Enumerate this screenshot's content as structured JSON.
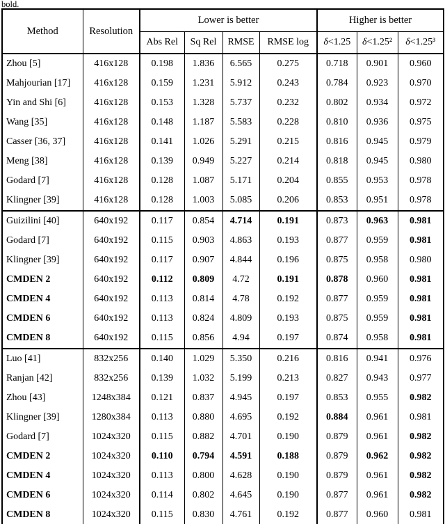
{
  "page": {
    "caption_tail": "bold."
  },
  "table": {
    "headers": {
      "method": "Method",
      "resolution": "Resolution",
      "lower_group": "Lower is better",
      "higher_group": "Higher is better",
      "metrics": [
        "Abs Rel",
        "Sq Rel",
        "RMSE",
        "RMSE log",
        "δ<1.25",
        "δ<1.25²",
        "δ<1.25³"
      ]
    },
    "sections": [
      {
        "rows": [
          {
            "method": "Zhou [5]",
            "method_bold": false,
            "resolution": "416x128",
            "values": [
              "0.198",
              "1.836",
              "6.565",
              "0.275",
              "0.718",
              "0.901",
              "0.960"
            ],
            "bold": [
              0,
              0,
              0,
              0,
              0,
              0,
              0
            ]
          },
          {
            "method": "Mahjourian [17]",
            "method_bold": false,
            "resolution": "416x128",
            "values": [
              "0.159",
              "1.231",
              "5.912",
              "0.243",
              "0.784",
              "0.923",
              "0.970"
            ],
            "bold": [
              0,
              0,
              0,
              0,
              0,
              0,
              0
            ]
          },
          {
            "method": "Yin and Shi [6]",
            "method_bold": false,
            "resolution": "416x128",
            "values": [
              "0.153",
              "1.328",
              "5.737",
              "0.232",
              "0.802",
              "0.934",
              "0.972"
            ],
            "bold": [
              0,
              0,
              0,
              0,
              0,
              0,
              0
            ]
          },
          {
            "method": "Wang [35]",
            "method_bold": false,
            "resolution": "416x128",
            "values": [
              "0.148",
              "1.187",
              "5.583",
              "0.228",
              "0.810",
              "0.936",
              "0.975"
            ],
            "bold": [
              0,
              0,
              0,
              0,
              0,
              0,
              0
            ]
          },
          {
            "method": "Casser [36, 37]",
            "method_bold": false,
            "resolution": "416x128",
            "values": [
              "0.141",
              "1.026",
              "5.291",
              "0.215",
              "0.816",
              "0.945",
              "0.979"
            ],
            "bold": [
              0,
              0,
              0,
              0,
              0,
              0,
              0
            ]
          },
          {
            "method": "Meng [38]",
            "method_bold": false,
            "resolution": "416x128",
            "values": [
              "0.139",
              "0.949",
              "5.227",
              "0.214",
              "0.818",
              "0.945",
              "0.980"
            ],
            "bold": [
              0,
              0,
              0,
              0,
              0,
              0,
              0
            ]
          },
          {
            "method": "Godard [7]",
            "method_bold": false,
            "resolution": "416x128",
            "values": [
              "0.128",
              "1.087",
              "5.171",
              "0.204",
              "0.855",
              "0.953",
              "0.978"
            ],
            "bold": [
              0,
              0,
              0,
              0,
              0,
              0,
              0
            ]
          },
          {
            "method": "Klingner [39]",
            "method_bold": false,
            "resolution": "416x128",
            "values": [
              "0.128",
              "1.003",
              "5.085",
              "0.206",
              "0.853",
              "0.951",
              "0.978"
            ],
            "bold": [
              0,
              0,
              0,
              0,
              0,
              0,
              0
            ]
          }
        ]
      },
      {
        "rows": [
          {
            "method": "Guizilini [40]",
            "method_bold": false,
            "resolution": "640x192",
            "values": [
              "0.117",
              "0.854",
              "4.714",
              "0.191",
              "0.873",
              "0.963",
              "0.981"
            ],
            "bold": [
              0,
              0,
              1,
              1,
              0,
              1,
              1
            ]
          },
          {
            "method": "Godard [7]",
            "method_bold": false,
            "resolution": "640x192",
            "values": [
              "0.115",
              "0.903",
              "4.863",
              "0.193",
              "0.877",
              "0.959",
              "0.981"
            ],
            "bold": [
              0,
              0,
              0,
              0,
              0,
              0,
              1
            ]
          },
          {
            "method": "Klingner [39]",
            "method_bold": false,
            "resolution": "640x192",
            "values": [
              "0.117",
              "0.907",
              "4.844",
              "0.196",
              "0.875",
              "0.958",
              "0.980"
            ],
            "bold": [
              0,
              0,
              0,
              0,
              0,
              0,
              0
            ]
          },
          {
            "method": "CMDEN 2",
            "method_bold": true,
            "resolution": "640x192",
            "values": [
              "0.112",
              "0.809",
              "4.72",
              "0.191",
              "0.878",
              "0.960",
              "0.981"
            ],
            "bold": [
              1,
              1,
              0,
              1,
              1,
              0,
              1
            ]
          },
          {
            "method": "CMDEN 4",
            "method_bold": true,
            "resolution": "640x192",
            "values": [
              "0.113",
              "0.814",
              "4.78",
              "0.192",
              "0.877",
              "0.959",
              "0.981"
            ],
            "bold": [
              0,
              0,
              0,
              0,
              0,
              0,
              1
            ]
          },
          {
            "method": "CMDEN 6",
            "method_bold": true,
            "resolution": "640x192",
            "values": [
              "0.113",
              "0.824",
              "4.809",
              "0.193",
              "0.875",
              "0.959",
              "0.981"
            ],
            "bold": [
              0,
              0,
              0,
              0,
              0,
              0,
              1
            ]
          },
          {
            "method": "CMDEN 8",
            "method_bold": true,
            "resolution": "640x192",
            "values": [
              "0.115",
              "0.856",
              "4.94",
              "0.197",
              "0.874",
              "0.958",
              "0.981"
            ],
            "bold": [
              0,
              0,
              0,
              0,
              0,
              0,
              1
            ]
          }
        ]
      },
      {
        "rows": [
          {
            "method": "Luo [41]",
            "method_bold": false,
            "resolution": "832x256",
            "values": [
              "0.140",
              "1.029",
              "5.350",
              "0.216",
              "0.816",
              "0.941",
              "0.976"
            ],
            "bold": [
              0,
              0,
              0,
              0,
              0,
              0,
              0
            ]
          },
          {
            "method": "Ranjan [42]",
            "method_bold": false,
            "resolution": "832x256",
            "values": [
              "0.139",
              "1.032",
              "5.199",
              "0.213",
              "0.827",
              "0.943",
              "0.977"
            ],
            "bold": [
              0,
              0,
              0,
              0,
              0,
              0,
              0
            ]
          },
          {
            "method": "Zhou [43]",
            "method_bold": false,
            "resolution": "1248x384",
            "values": [
              "0.121",
              "0.837",
              "4.945",
              "0.197",
              "0.853",
              "0.955",
              "0.982"
            ],
            "bold": [
              0,
              0,
              0,
              0,
              0,
              0,
              1
            ]
          },
          {
            "method": "Klingner [39]",
            "method_bold": false,
            "resolution": "1280x384",
            "values": [
              "0.113",
              "0.880",
              "4.695",
              "0.192",
              "0.884",
              "0.961",
              "0.981"
            ],
            "bold": [
              0,
              0,
              0,
              0,
              1,
              0,
              0
            ]
          },
          {
            "method": "Godard [7]",
            "method_bold": false,
            "resolution": "1024x320",
            "values": [
              "0.115",
              "0.882",
              "4.701",
              "0.190",
              "0.879",
              "0.961",
              "0.982"
            ],
            "bold": [
              0,
              0,
              0,
              0,
              0,
              0,
              1
            ]
          },
          {
            "method": "CMDEN 2",
            "method_bold": true,
            "resolution": "1024x320",
            "values": [
              "0.110",
              "0.794",
              "4.591",
              "0.188",
              "0.879",
              "0.962",
              "0.982"
            ],
            "bold": [
              1,
              1,
              1,
              1,
              0,
              1,
              1
            ]
          },
          {
            "method": "CMDEN 4",
            "method_bold": true,
            "resolution": "1024x320",
            "values": [
              "0.113",
              "0.800",
              "4.628",
              "0.190",
              "0.879",
              "0.961",
              "0.982"
            ],
            "bold": [
              0,
              0,
              0,
              0,
              0,
              0,
              1
            ]
          },
          {
            "method": "CMDEN 6",
            "method_bold": true,
            "resolution": "1024x320",
            "values": [
              "0.114",
              "0.802",
              "4.645",
              "0.190",
              "0.877",
              "0.961",
              "0.982"
            ],
            "bold": [
              0,
              0,
              0,
              0,
              0,
              0,
              1
            ]
          },
          {
            "method": "CMDEN 8",
            "method_bold": true,
            "resolution": "1024x320",
            "values": [
              "0.115",
              "0.830",
              "4.761",
              "0.192",
              "0.877",
              "0.960",
              "0.981"
            ],
            "bold": [
              0,
              0,
              0,
              0,
              0,
              0,
              0
            ]
          }
        ]
      }
    ]
  }
}
